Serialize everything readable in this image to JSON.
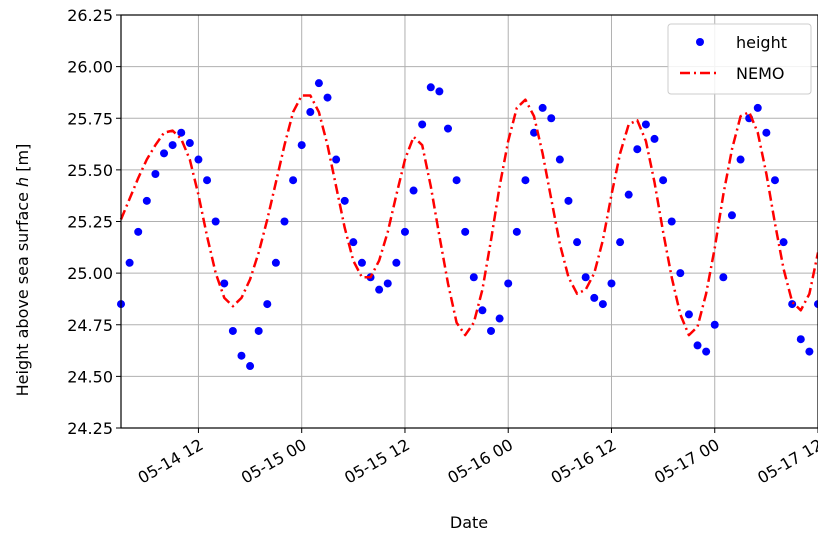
{
  "chart_data": {
    "type": "scatter",
    "xlabel": "Date",
    "ylabel_main": "Height above sea surface ",
    "ylabel_var": "h",
    "ylabel_unit": " [m]",
    "xlim": [
      "05-14 03:00",
      "05-17 12:00"
    ],
    "ylim": [
      24.25,
      26.25
    ],
    "grid": true,
    "legend_position": "top-right",
    "x_tick_labels": [
      "05-14 12",
      "05-15 00",
      "05-15 12",
      "05-16 00",
      "05-16 12",
      "05-17 00",
      "05-17 12"
    ],
    "x_tick_hours": [
      9,
      21,
      33,
      45,
      57,
      69,
      81
    ],
    "y_ticks": [
      24.25,
      24.5,
      24.75,
      25.0,
      25.25,
      25.5,
      25.75,
      26.0,
      26.25
    ],
    "y_tick_labels": [
      "24.25",
      "24.50",
      "24.75",
      "25.00",
      "25.25",
      "25.50",
      "25.75",
      "26.00",
      "26.25"
    ],
    "series": [
      {
        "name": "height",
        "kind": "points",
        "color": "#0000ff",
        "x_hours": [
          0,
          1,
          2,
          3,
          4,
          5,
          6,
          7,
          8,
          9,
          10,
          11,
          12,
          13,
          14,
          15,
          16,
          17,
          18,
          19,
          20,
          21,
          22,
          23,
          24,
          25,
          26,
          27,
          28,
          29,
          30,
          31,
          32,
          33,
          34,
          35,
          36,
          37,
          38,
          39,
          40,
          41,
          42,
          43,
          44,
          45,
          46,
          47,
          48,
          49,
          50,
          51,
          52,
          53,
          54,
          55,
          56,
          57,
          58,
          59,
          60,
          61,
          62,
          63,
          64,
          65,
          66,
          67,
          68,
          69,
          70,
          71,
          72,
          73,
          74,
          75,
          76,
          77,
          78,
          79,
          80,
          81
        ],
        "values": [
          24.85,
          25.05,
          25.2,
          25.35,
          25.48,
          25.58,
          25.62,
          25.68,
          25.63,
          25.55,
          25.45,
          25.25,
          24.95,
          24.72,
          24.6,
          24.55,
          24.72,
          24.85,
          25.05,
          25.25,
          25.45,
          25.62,
          25.78,
          25.92,
          25.85,
          25.55,
          25.35,
          25.15,
          25.05,
          24.98,
          24.92,
          24.95,
          25.05,
          25.2,
          25.4,
          25.72,
          25.9,
          25.88,
          25.7,
          25.45,
          25.2,
          24.98,
          24.82,
          24.72,
          24.78,
          24.95,
          25.2,
          25.45,
          25.68,
          25.8,
          25.75,
          25.55,
          25.35,
          25.15,
          24.98,
          24.88,
          24.85,
          24.95,
          25.15,
          25.38,
          25.6,
          25.72,
          25.65,
          25.45,
          25.25,
          25.0,
          24.8,
          24.65,
          24.62,
          24.75,
          24.98,
          25.28,
          25.55,
          25.75,
          25.8,
          25.68,
          25.45,
          25.15,
          24.85,
          24.68,
          24.62,
          24.85
        ]
      },
      {
        "name": "NEMO",
        "kind": "line",
        "color": "#ff0000",
        "line_style": "dash-dot",
        "x_hours": [
          0,
          1,
          2,
          3,
          4,
          5,
          6,
          7,
          8,
          9,
          10,
          11,
          12,
          13,
          14,
          15,
          16,
          17,
          18,
          19,
          20,
          21,
          22,
          23,
          24,
          25,
          26,
          27,
          28,
          29,
          30,
          31,
          32,
          33,
          34,
          35,
          36,
          37,
          38,
          39,
          40,
          41,
          42,
          43,
          44,
          45,
          46,
          47,
          48,
          49,
          50,
          51,
          52,
          53,
          54,
          55,
          56,
          57,
          58,
          59,
          60,
          61,
          62,
          63,
          64,
          65,
          66,
          67,
          68,
          69,
          70,
          71,
          72,
          73,
          74,
          75,
          76,
          77,
          78,
          79,
          80,
          81
        ],
        "values": [
          25.26,
          25.36,
          25.46,
          25.55,
          25.62,
          25.68,
          25.69,
          25.65,
          25.55,
          25.38,
          25.18,
          25.0,
          24.88,
          24.84,
          24.88,
          24.97,
          25.1,
          25.26,
          25.44,
          25.62,
          25.78,
          25.86,
          25.86,
          25.78,
          25.62,
          25.42,
          25.22,
          25.06,
          24.98,
          24.98,
          25.06,
          25.2,
          25.38,
          25.55,
          25.66,
          25.62,
          25.42,
          25.18,
          24.95,
          24.76,
          24.7,
          24.76,
          24.92,
          25.16,
          25.42,
          25.64,
          25.8,
          25.84,
          25.76,
          25.58,
          25.36,
          25.14,
          24.98,
          24.9,
          24.92,
          25.0,
          25.16,
          25.38,
          25.58,
          25.72,
          25.74,
          25.64,
          25.44,
          25.2,
          24.98,
          24.8,
          24.7,
          24.74,
          24.9,
          25.12,
          25.38,
          25.6,
          25.76,
          25.78,
          25.68,
          25.48,
          25.24,
          25.02,
          24.86,
          24.82,
          24.9,
          25.1
        ]
      }
    ]
  }
}
